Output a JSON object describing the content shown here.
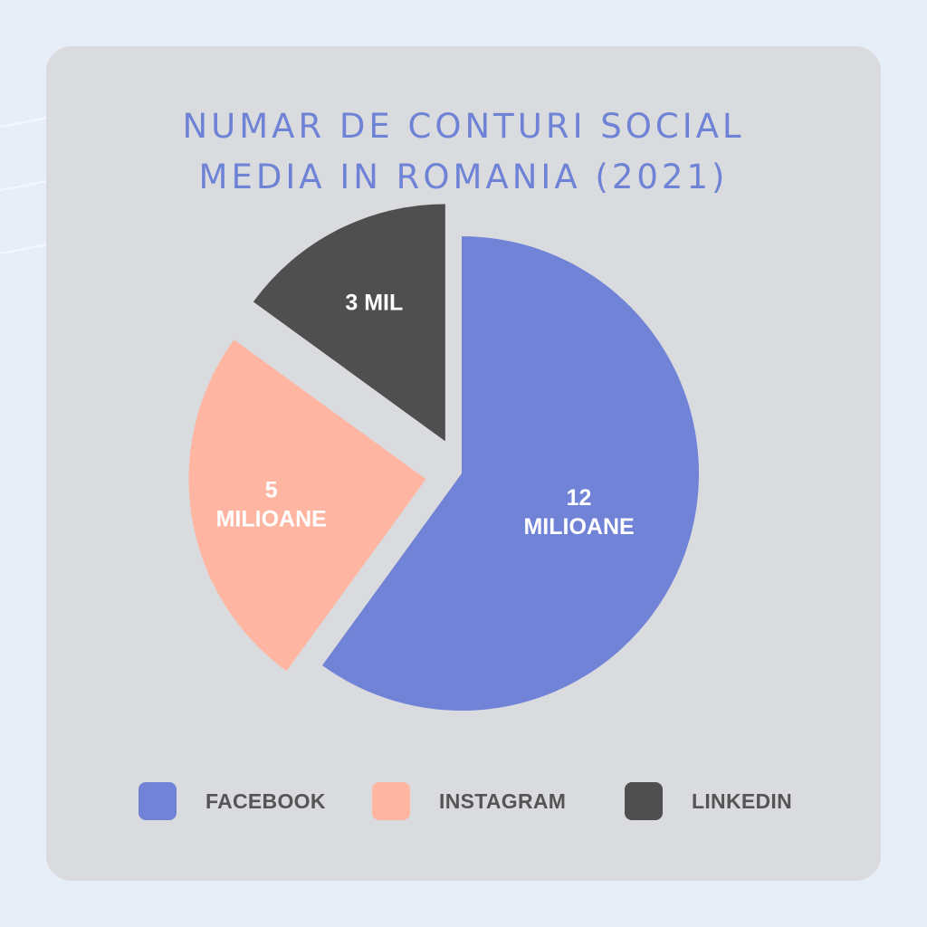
{
  "chart_data": {
    "type": "pie",
    "title_lines": [
      "NUMAR DE CONTURI SOCIAL",
      "MEDIA IN ROMANIA (2021)"
    ],
    "slices": [
      {
        "name": "FACEBOOK",
        "value": 12,
        "label_lines": [
          "12",
          "MILIOANE"
        ],
        "color": "#7083d7"
      },
      {
        "name": "INSTAGRAM",
        "value": 5,
        "label_lines": [
          "5",
          "MILIOANE"
        ],
        "color": "#feb6a3"
      },
      {
        "name": "LINKEDIN",
        "value": 3,
        "label_lines": [
          "3 MIL"
        ],
        "color": "#4f4f4f"
      }
    ],
    "legend": {
      "placement": "bottom"
    }
  },
  "colors": {
    "background": "#e8eef8",
    "card": "#dadbde",
    "title": "#6f83d6",
    "legend_text": "#555555",
    "slice_text": "#ffffff"
  }
}
